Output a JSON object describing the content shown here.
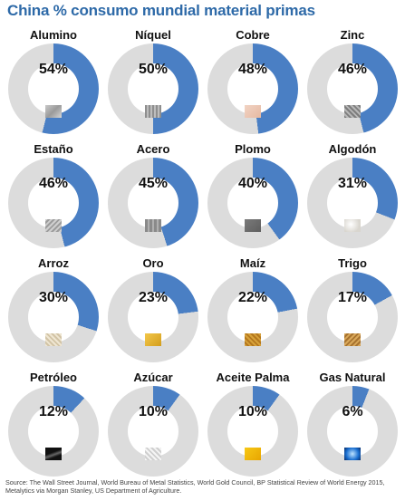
{
  "title": "China % consumo mundial material primas",
  "colors": {
    "share": "#4a7fc4",
    "rest": "#dcdcdc",
    "title": "#2e6aa8"
  },
  "chart_data": {
    "type": "pie",
    "title": "China % consumo mundial material primas",
    "unit": "%",
    "categories": [
      "Alumino",
      "Níquel",
      "Cobre",
      "Zinc",
      "Estaño",
      "Acero",
      "Plomo",
      "Algodón",
      "Arroz",
      "Oro",
      "Maíz",
      "Trigo",
      "Petróleo",
      "Azúcar",
      "Aceite Palma",
      "Gas Natural"
    ],
    "values": [
      54,
      50,
      48,
      46,
      46,
      45,
      40,
      31,
      30,
      23,
      22,
      17,
      12,
      10,
      10,
      6
    ],
    "labels": [
      "54%",
      "50%",
      "48%",
      "46%",
      "46%",
      "45%",
      "40%",
      "31%",
      "30%",
      "23%",
      "22%",
      "17%",
      "12%",
      "10%",
      "10%",
      "6%"
    ],
    "material_icons": [
      "aluminum",
      "nickel",
      "copper",
      "zinc",
      "tin",
      "steel",
      "lead",
      "cotton",
      "rice",
      "gold",
      "corn",
      "wheat",
      "oil",
      "sugar",
      "palm-oil",
      "natural-gas"
    ]
  },
  "source": "Source: The Wall Street Journal, World Bureau of Metal Statistics, World Gold Council, BP Statistical Review of World Energy 2015, Metalytics via Morgan Stanley, US Department of Agriculture."
}
